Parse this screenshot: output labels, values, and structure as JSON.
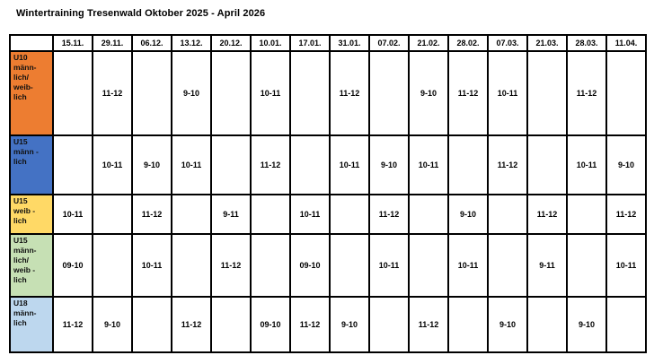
{
  "title": "Wintertraining Tresenwald Oktober 2025 - April 2026",
  "table": {
    "date_headers": [
      "15.11.",
      "29.11.",
      "06.12.",
      "13.12.",
      "20.12.",
      "10.01.",
      "17.01.",
      "31.01.",
      "07.02.",
      "21.02.",
      "28.02.",
      "07.03.",
      "21.03.",
      "28.03.",
      "11.04."
    ],
    "rows": [
      {
        "group": "U10\nmänn-\nlich/\nweib-\nlich",
        "color": "#ED7D31",
        "cells": [
          "",
          "11-12",
          "",
          "9-10",
          "",
          "10-11",
          "",
          "11-12",
          "",
          "9-10",
          "11-12",
          "10-11",
          "",
          "11-12",
          ""
        ]
      },
      {
        "group": "U15\nmänn -\nlich",
        "color": "#4472C4",
        "cells": [
          "",
          "10-11",
          "9-10",
          "10-11",
          "",
          "11-12",
          "",
          "10-11",
          "9-10",
          "10-11",
          "",
          "11-12",
          "",
          "10-11",
          "9-10"
        ]
      },
      {
        "group": "U15\nweib -\nlich",
        "color": "#FFD966",
        "cells": [
          "10-11",
          "",
          "11-12",
          "",
          "9-11",
          "",
          "10-11",
          "",
          "11-12",
          "",
          "9-10",
          "",
          "11-12",
          "",
          "11-12"
        ]
      },
      {
        "group": "U15\nmänn-\nlich/\nweib -\nlich",
        "color": "#C6E0B4",
        "cells": [
          "09-10",
          "",
          "10-11",
          "",
          "11-12",
          "",
          "09-10",
          "",
          "10-11",
          "",
          "10-11",
          "",
          "9-11",
          "",
          "10-11"
        ]
      },
      {
        "group": "U18\nmänn-\nlich",
        "color": "#BDD7EE",
        "cells": [
          "11-12",
          "9-10",
          "",
          "11-12",
          "",
          "09-10",
          "11-12",
          "9-10",
          "",
          "11-12",
          "",
          "9-10",
          "",
          "9-10",
          ""
        ]
      }
    ]
  }
}
